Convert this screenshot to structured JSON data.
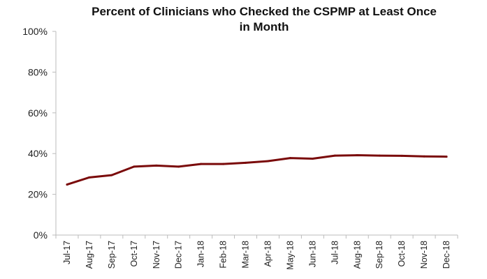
{
  "chart_data": {
    "type": "line",
    "title": "Percent of Clinicians who Checked the CSPMP at Least Once in Month",
    "title_lines": [
      "Percent of Clinicians who Checked the CSPMP at Least Once",
      "in Month"
    ],
    "xlabel": "",
    "ylabel": "",
    "categories": [
      "Jul-17",
      "Aug-17",
      "Sep-17",
      "Oct-17",
      "Nov-17",
      "Dec-17",
      "Jan-18",
      "Feb-18",
      "Mar-18",
      "Apr-18",
      "May-18",
      "Jun-18",
      "Jul-18",
      "Aug-18",
      "Sep-18",
      "Oct-18",
      "Nov-18",
      "Dec-18"
    ],
    "series": [
      {
        "name": "Percent of clinicians",
        "color": "#7a0a0a",
        "values": [
          24.8,
          28.3,
          29.4,
          33.6,
          34.1,
          33.6,
          34.9,
          34.9,
          35.5,
          36.3,
          37.8,
          37.5,
          39.0,
          39.2,
          39.0,
          38.9,
          38.6,
          38.5
        ]
      }
    ],
    "ylim": [
      0,
      100
    ],
    "yticks": [
      "0%",
      "20%",
      "40%",
      "60%",
      "80%",
      "100%"
    ],
    "grid": false,
    "legend": "none"
  }
}
